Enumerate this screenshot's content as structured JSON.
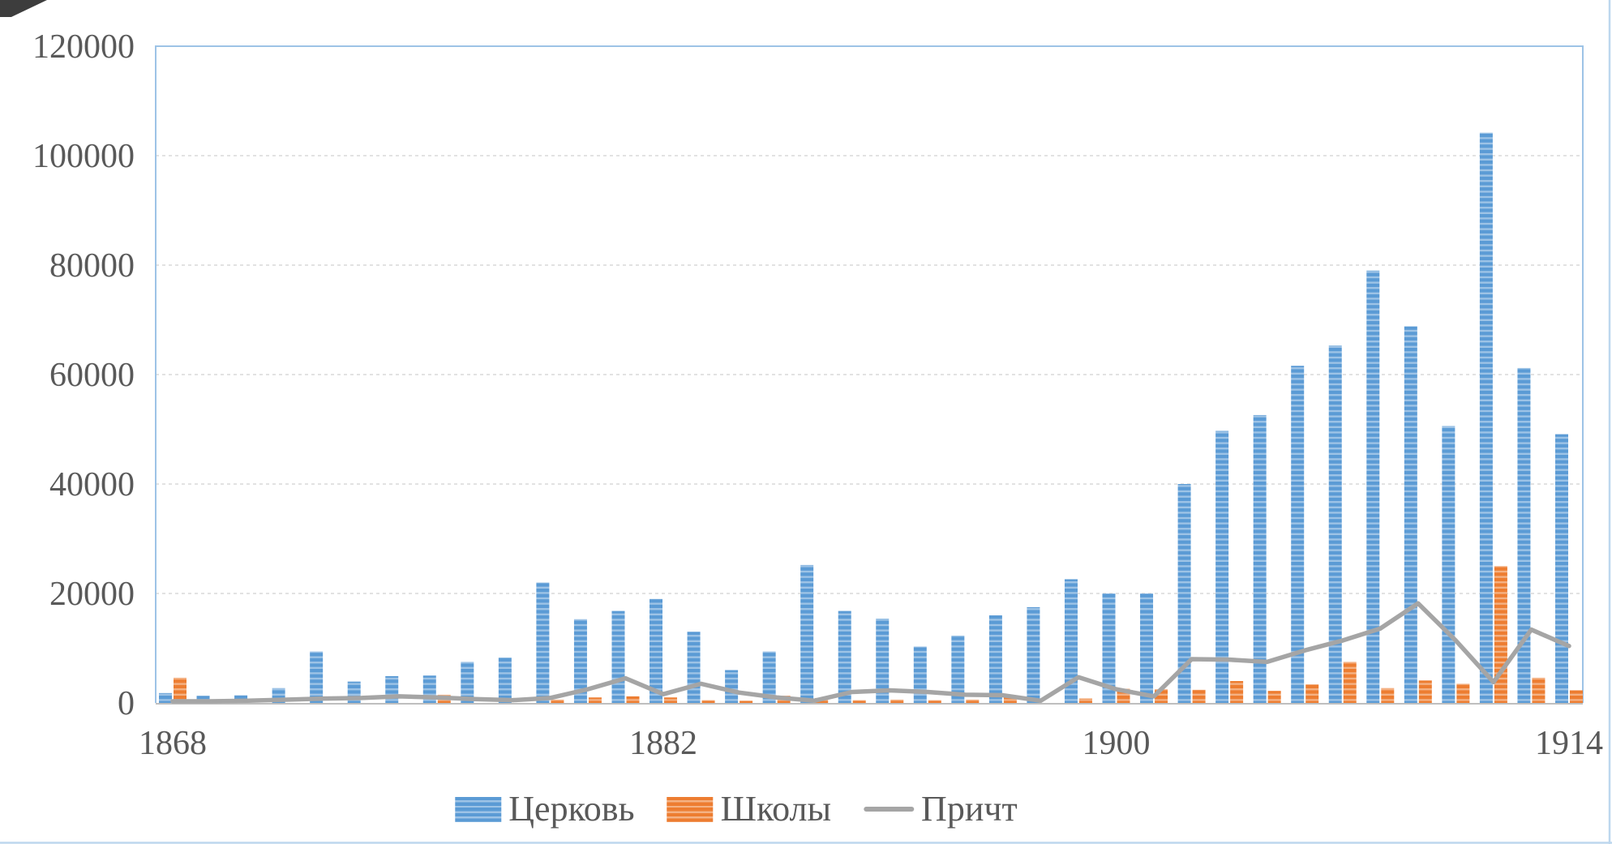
{
  "chart_data": {
    "type": "bar",
    "subtype": "grouped bars with overlaid line (Excel-style combo chart)",
    "n_categories": 38,
    "x_tick_labels": [
      {
        "index": 0,
        "label": "1868"
      },
      {
        "index": 13,
        "label": "1882"
      },
      {
        "index": 25,
        "label": "1900"
      },
      {
        "index": 37,
        "label": "1914"
      }
    ],
    "y_axis": {
      "min": 0,
      "max": 120000,
      "step": 20000,
      "tick_labels": [
        "0",
        "20000",
        "40000",
        "60000",
        "80000",
        "100000",
        "120000"
      ]
    },
    "grid": true,
    "legend_position": "bottom",
    "series": [
      {
        "name": "Церковь",
        "type": "bar",
        "color": "#5B9BD5",
        "stripe_color": "#9DC3E6",
        "values": [
          1800,
          1300,
          1400,
          2700,
          9400,
          3900,
          4900,
          5000,
          7500,
          8300,
          22000,
          15300,
          16800,
          19000,
          13000,
          6000,
          9400,
          25200,
          16800,
          15400,
          10300,
          12300,
          16000,
          17500,
          22600,
          20000,
          20000,
          40000,
          49700,
          52600,
          61600,
          65300,
          79000,
          68800,
          50600,
          104200,
          61200,
          49100
        ]
      },
      {
        "name": "Школы",
        "type": "bar",
        "color": "#ED7D31",
        "stripe_color": "#F4B183",
        "values": [
          4600,
          0,
          0,
          0,
          0,
          0,
          0,
          1500,
          0,
          0,
          600,
          1000,
          1200,
          1000,
          500,
          400,
          1300,
          900,
          500,
          600,
          500,
          600,
          1200,
          0,
          800,
          2600,
          2500,
          2400,
          4000,
          2200,
          3400,
          7500,
          2700,
          4100,
          3500,
          25000,
          4600,
          2300
        ]
      },
      {
        "name": "Причт",
        "type": "line",
        "color": "#A5A5A5",
        "values": [
          300,
          300,
          400,
          600,
          800,
          900,
          1200,
          1000,
          700,
          500,
          900,
          2500,
          4500,
          1600,
          3500,
          1900,
          1000,
          400,
          2000,
          2300,
          2000,
          1500,
          1400,
          400,
          4700,
          2500,
          1200,
          8000,
          7900,
          7500,
          9600,
          11400,
          13600,
          18200,
          11400,
          3800,
          13400,
          10400
        ]
      }
    ]
  },
  "legend": {
    "items": [
      {
        "label": "Церковь",
        "swatch": "blue-striped-bar"
      },
      {
        "label": "Школы",
        "swatch": "orange-striped-bar"
      },
      {
        "label": "Причт",
        "swatch": "gray-line"
      }
    ]
  },
  "colors": {
    "church_bar": "#5B9BD5",
    "schools_bar": "#ED7D31",
    "clergy_line": "#A5A5A5",
    "gridline": "#D9D9D9",
    "plot_border": "#9DC3E6",
    "axis_line": "#BFBFBF",
    "chart_outer_border": "#BDD7EE",
    "tick_text": "#595959",
    "background": "#FFFFFF"
  }
}
